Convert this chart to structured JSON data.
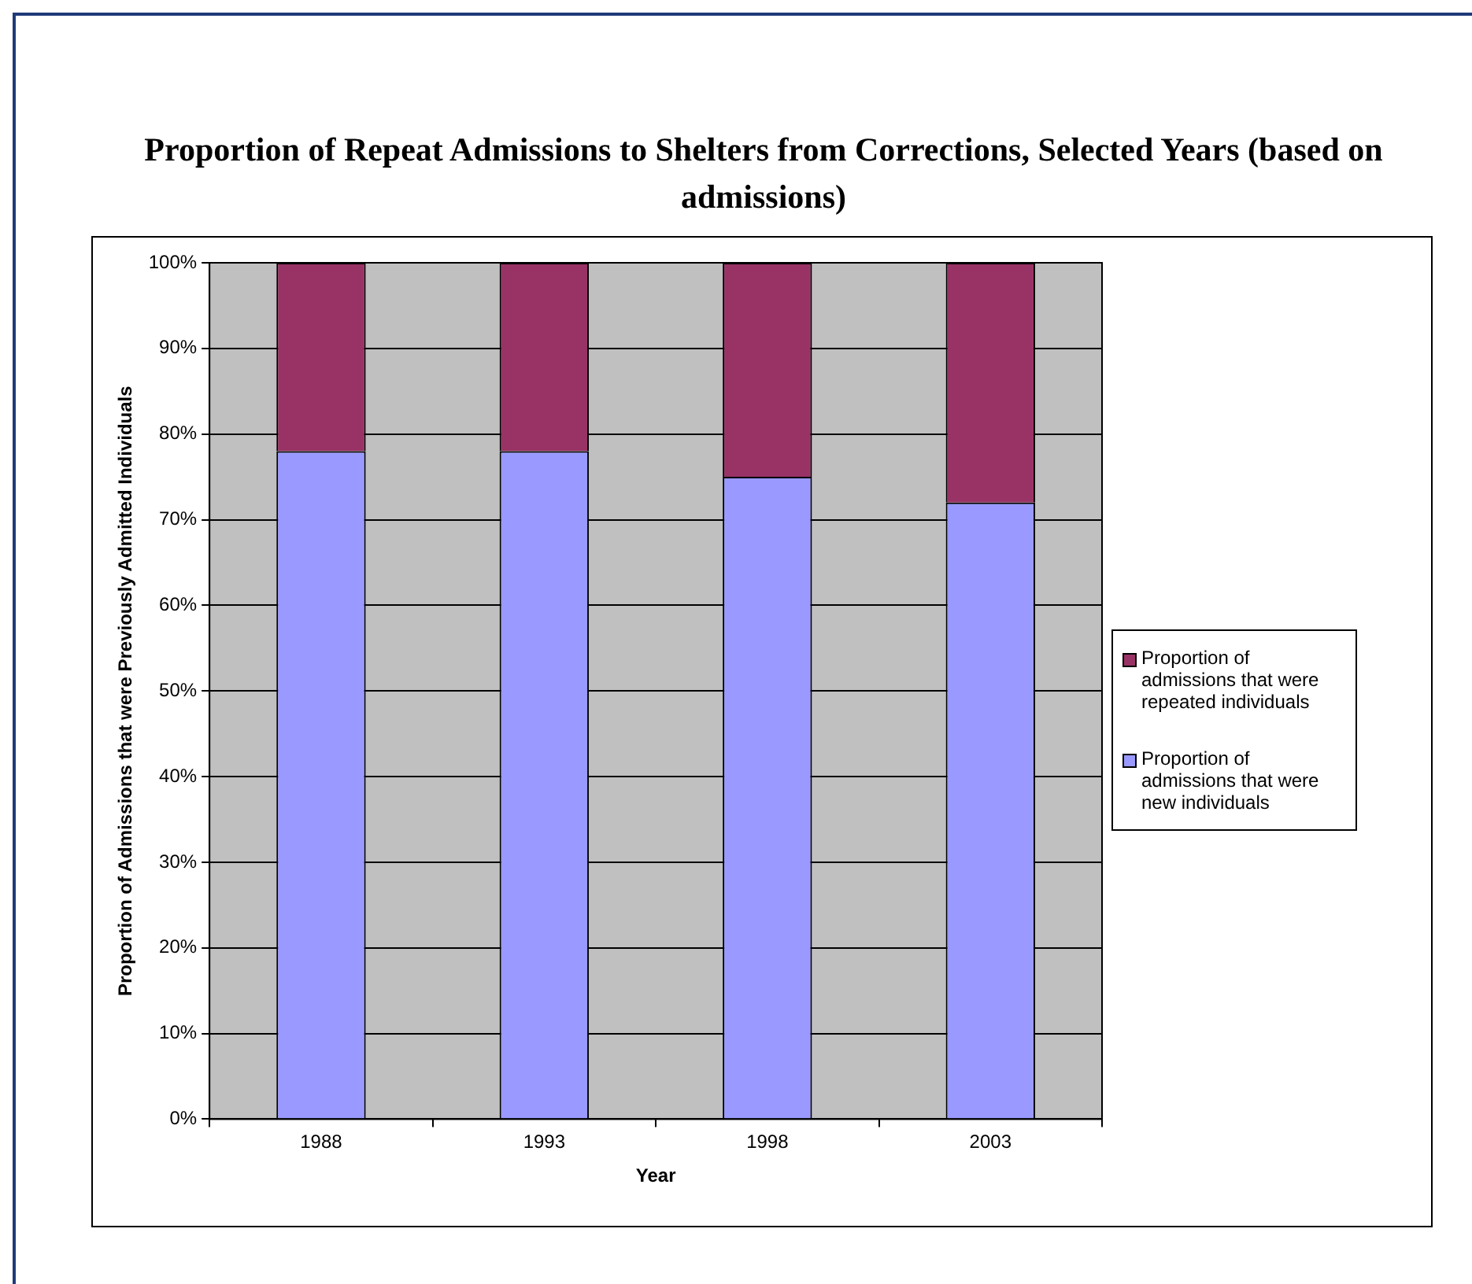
{
  "chart_data": {
    "type": "bar",
    "title": "Proportion of Repeat Admissions to Shelters from Corrections, Selected Years (based on admissions)",
    "xlabel": "Year",
    "ylabel": "Proportion of Admissions that were Previously Admitted Individuals",
    "categories": [
      "1988",
      "1993",
      "1998",
      "2003"
    ],
    "stacked": true,
    "series": [
      {
        "name": "Proportion of admissions that were new individuals",
        "color": "#9999ff",
        "values": [
          78,
          78,
          75,
          72
        ]
      },
      {
        "name": "Proportion of admissions that were repeated individuals",
        "color": "#993366",
        "values": [
          22,
          22,
          25,
          28
        ]
      }
    ],
    "ylim": [
      0,
      100
    ],
    "yticks": [
      {
        "value": 0,
        "label": "0%"
      },
      {
        "value": 10,
        "label": "10%"
      },
      {
        "value": 20,
        "label": "20%"
      },
      {
        "value": 30,
        "label": "30%"
      },
      {
        "value": 40,
        "label": "40%"
      },
      {
        "value": 50,
        "label": "50%"
      },
      {
        "value": 60,
        "label": "60%"
      },
      {
        "value": 70,
        "label": "70%"
      },
      {
        "value": 80,
        "label": "80%"
      },
      {
        "value": 90,
        "label": "90%"
      },
      {
        "value": 100,
        "label": "100%"
      }
    ],
    "grid": "y",
    "legend": "right"
  }
}
